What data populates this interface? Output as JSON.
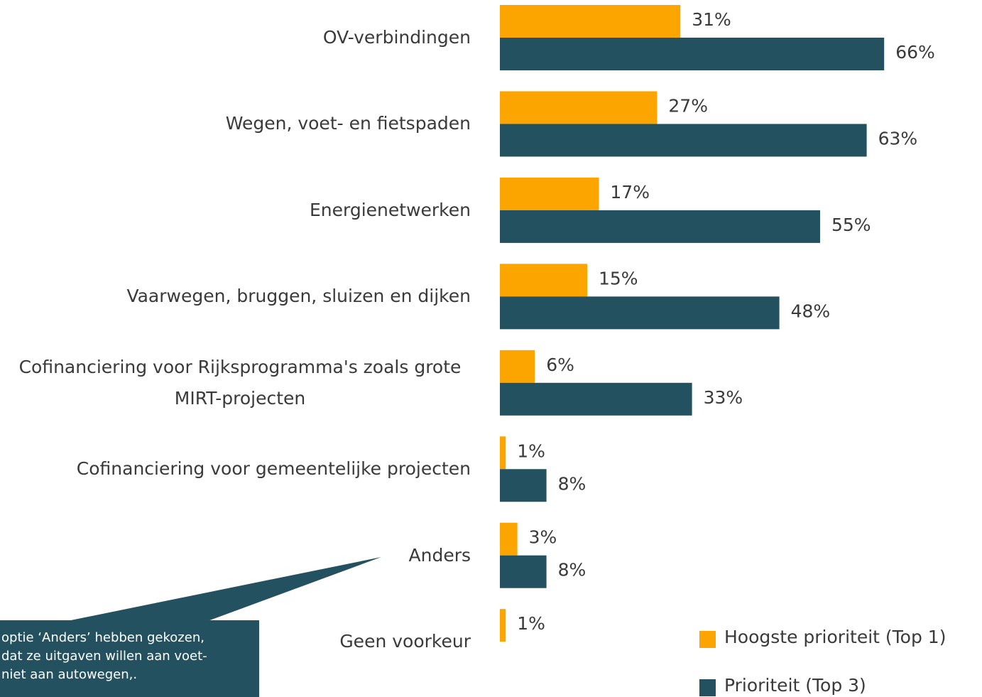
{
  "chart_data": {
    "type": "bar",
    "orientation": "horizontal",
    "categories": [
      "OV-verbindingen",
      "Wegen, voet- en fietspaden",
      "Energienetwerken",
      "Vaarwegen, bruggen, sluizen en dijken",
      "Cofinanciering voor Rijksprogramma's zoals grote MIRT-projecten",
      "Cofinanciering voor gemeentelijke projecten",
      "Anders",
      "Geen voorkeur"
    ],
    "series": [
      {
        "name": "Hoogste prioriteit (Top 1)",
        "color": "#fca500",
        "values": [
          31,
          27,
          17,
          15,
          6,
          1,
          3,
          1
        ],
        "value_labels": [
          "31%",
          "27%",
          "17%",
          "15%",
          "6%",
          "1%",
          "3%",
          "1%"
        ]
      },
      {
        "name": "Prioriteit (Top 3)",
        "color": "#245160",
        "values": [
          66,
          63,
          55,
          48,
          33,
          8,
          8,
          null
        ],
        "value_labels": [
          "66%",
          "63%",
          "55%",
          "48%",
          "33%",
          "8%",
          "8%",
          null
        ]
      }
    ],
    "xlim": [
      0,
      100
    ],
    "legend": "bottom-right",
    "annotation": [
      "optie ‘Anders’ hebben gekozen,",
      "dat ze uitgaven willen aan voet-",
      "niet aan autowegen,."
    ]
  }
}
